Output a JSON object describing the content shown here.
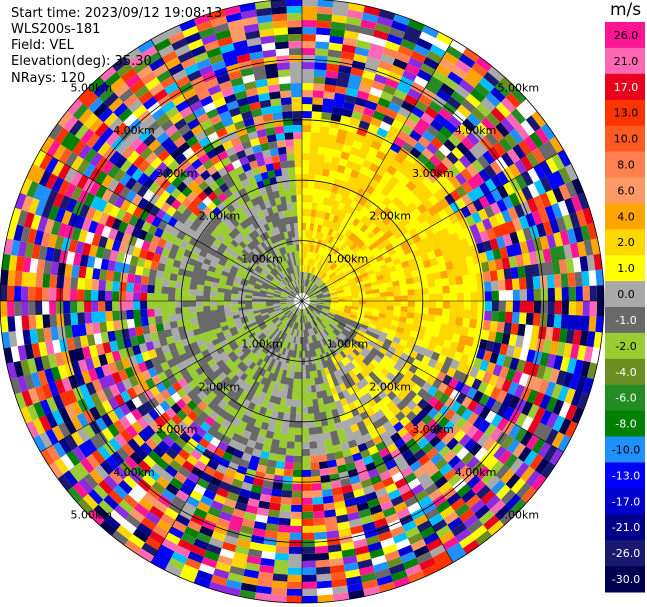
{
  "info": {
    "start_time": "Start time: 2023/09/12 19:08:13",
    "instrument": "WLS200s-181",
    "field": "Field: VEL",
    "elevation": "Elevation(deg): 35.30",
    "nrays": "NRays: 120"
  },
  "chart_data": {
    "type": "heatmap",
    "projection": "polar-ppi",
    "n_rays": 120,
    "ring_labels": [
      "1.00km",
      "2.00km",
      "3.00km",
      "4.00km",
      "5.00km"
    ],
    "ring_values_km": [
      1,
      2,
      3,
      4,
      5
    ],
    "max_range_km": 5.0,
    "colorbar": {
      "unit": "m/s",
      "ticks": [
        "26.0",
        "21.0",
        "17.0",
        "13.0",
        "10.0",
        "8.0",
        "6.0",
        "4.0",
        "2.0",
        "1.0",
        "0.0",
        "-1.0",
        "-2.0",
        "-4.0",
        "-6.0",
        "-8.0",
        "-10.0",
        "-13.0",
        "-17.0",
        "-21.0",
        "-26.0",
        "-30.0"
      ],
      "colors": [
        "#ff1493",
        "#ff69b4",
        "#e8001c",
        "#ff3300",
        "#ff5a1f",
        "#ff7f50",
        "#ff9966",
        "#ffa500",
        "#ffd700",
        "#ffff00",
        "#a9a9a9",
        "#696969",
        "#9acd32",
        "#6b8e23",
        "#228b22",
        "#008000",
        "#1e90ff",
        "#0000ff",
        "#0000cd",
        "#00008b",
        "#191970",
        "#000050"
      ]
    }
  }
}
